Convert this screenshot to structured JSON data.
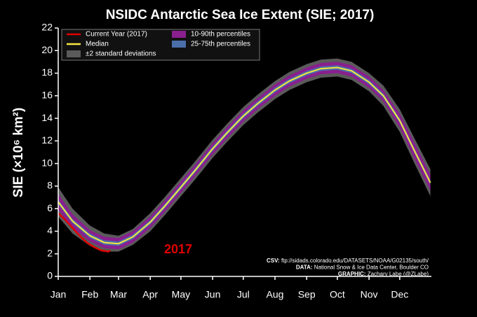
{
  "chart_data": {
    "type": "line",
    "title": "NSIDC Antarctic Sea Ice Extent (SIE; 2017)",
    "ylabel": "SIE (×10⁶ km²)",
    "xlim": [
      1,
      366
    ],
    "xticks": [
      {
        "value": 1,
        "label": "Jan"
      },
      {
        "value": 32,
        "label": "Feb"
      },
      {
        "value": 60,
        "label": "Mar"
      },
      {
        "value": 91,
        "label": "Apr"
      },
      {
        "value": 121,
        "label": "May"
      },
      {
        "value": 152,
        "label": "Jun"
      },
      {
        "value": 182,
        "label": "Jul"
      },
      {
        "value": 213,
        "label": "Aug"
      },
      {
        "value": 244,
        "label": "Sep"
      },
      {
        "value": 274,
        "label": "Oct"
      },
      {
        "value": 305,
        "label": "Nov"
      },
      {
        "value": 335,
        "label": "Dec"
      }
    ],
    "ylim": [
      0,
      22
    ],
    "yticks": [
      0,
      2,
      4,
      6,
      8,
      10,
      12,
      14,
      16,
      18,
      20,
      22
    ],
    "x": [
      1,
      15,
      32,
      46,
      60,
      74,
      91,
      105,
      121,
      135,
      152,
      166,
      182,
      196,
      213,
      227,
      244,
      258,
      274,
      288,
      305,
      319,
      335,
      349,
      365
    ],
    "bands": [
      {
        "name": "±2 standard deviations",
        "color": "#5a5a5a",
        "lower": [
          5.3,
          3.8,
          2.7,
          2.2,
          2.2,
          2.8,
          4.0,
          5.4,
          7.1,
          8.6,
          10.5,
          11.9,
          13.4,
          14.5,
          15.7,
          16.5,
          17.2,
          17.6,
          17.7,
          17.4,
          16.4,
          15.1,
          12.8,
          10.1,
          7.1
        ],
        "upper": [
          7.9,
          6.0,
          4.5,
          3.8,
          3.6,
          4.2,
          5.6,
          7.0,
          8.7,
          10.2,
          12.1,
          13.5,
          15.0,
          16.1,
          17.3,
          18.1,
          18.8,
          19.2,
          19.3,
          19.0,
          18.0,
          16.9,
          14.8,
          12.3,
          9.5
        ]
      },
      {
        "name": "10-90th percentiles",
        "color": "#8a1f8f",
        "lower": [
          5.9,
          4.3,
          3.1,
          2.5,
          2.4,
          3.0,
          4.3,
          5.7,
          7.4,
          8.9,
          10.8,
          12.2,
          13.7,
          14.8,
          16.0,
          16.8,
          17.5,
          17.9,
          18.0,
          17.7,
          16.7,
          15.5,
          13.2,
          10.5,
          7.6
        ],
        "upper": [
          7.3,
          5.5,
          4.1,
          3.5,
          3.4,
          4.0,
          5.3,
          6.7,
          8.4,
          9.9,
          11.8,
          13.2,
          14.7,
          15.8,
          17.0,
          17.8,
          18.5,
          18.9,
          19.0,
          18.7,
          17.7,
          16.5,
          14.4,
          11.9,
          9.0
        ]
      },
      {
        "name": "25-75th percentiles",
        "color": "#4a6ea8",
        "lower": [
          6.4,
          4.7,
          3.4,
          2.8,
          2.7,
          3.3,
          4.6,
          6.0,
          7.7,
          9.2,
          11.1,
          12.5,
          14.0,
          15.1,
          16.3,
          17.1,
          17.8,
          18.2,
          18.3,
          18.0,
          17.0,
          15.8,
          13.6,
          11.0,
          8.1
        ],
        "upper": [
          6.8,
          5.1,
          3.8,
          3.2,
          3.1,
          3.7,
          5.0,
          6.4,
          8.1,
          9.6,
          11.5,
          12.9,
          14.4,
          15.5,
          16.7,
          17.5,
          18.2,
          18.6,
          18.7,
          18.4,
          17.4,
          16.2,
          14.0,
          11.4,
          8.5
        ]
      }
    ],
    "series": [
      {
        "name": "Current Year (2017)",
        "color": "#e00000",
        "x": [
          1,
          8,
          15,
          22,
          29,
          36,
          43,
          50,
          52
        ],
        "values": [
          5.6,
          5.0,
          4.3,
          3.6,
          3.0,
          2.6,
          2.3,
          2.2,
          2.3
        ]
      },
      {
        "name": "Median",
        "color": "#f5e642",
        "values": [
          6.6,
          4.9,
          3.6,
          3.0,
          2.9,
          3.5,
          4.8,
          6.2,
          7.9,
          9.4,
          11.3,
          12.7,
          14.2,
          15.3,
          16.5,
          17.3,
          18.0,
          18.4,
          18.5,
          18.2,
          17.2,
          16.0,
          13.8,
          11.2,
          8.3
        ]
      }
    ],
    "annotations": [
      "2017"
    ],
    "credits": [
      {
        "label": "CSV:",
        "text": "ftp://sidads.colorado.edu/DATASETS/NOAA/G02135/south/"
      },
      {
        "label": "DATA:",
        "text": "National Snow & Ice Data Center, Boulder CO"
      },
      {
        "label": "GRAPHIC:",
        "text": "Zachary Labe (@ZLabe)"
      }
    ]
  }
}
